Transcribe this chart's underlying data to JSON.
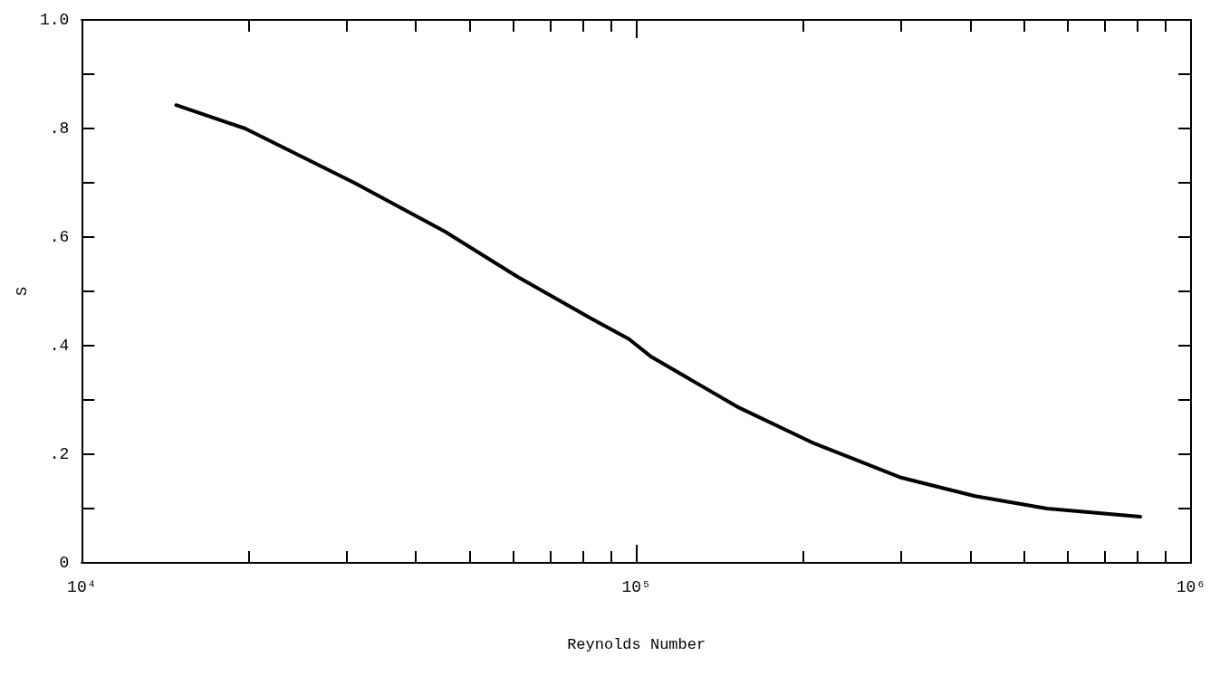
{
  "chart_data": {
    "type": "line",
    "xlabel": "Reynolds Number",
    "ylabel": "S",
    "log": "x",
    "line_style": "solid",
    "xlim": [
      10000,
      1000000
    ],
    "xticks": [
      {
        "value": 10000,
        "label": "10⁴"
      },
      {
        "value": 20000,
        "label": null
      },
      {
        "value": 30000,
        "label": null
      },
      {
        "value": 40000,
        "label": null
      },
      {
        "value": 50000,
        "label": null
      },
      {
        "value": 60000,
        "label": null
      },
      {
        "value": 70000,
        "label": null
      },
      {
        "value": 80000,
        "label": null
      },
      {
        "value": 90000,
        "label": null
      },
      {
        "value": 100000,
        "label": "10⁵"
      },
      {
        "value": 200000,
        "label": null
      },
      {
        "value": 300000,
        "label": null
      },
      {
        "value": 400000,
        "label": null
      },
      {
        "value": 500000,
        "label": null
      },
      {
        "value": 600000,
        "label": null
      },
      {
        "value": 700000,
        "label": null
      },
      {
        "value": 800000,
        "label": null
      },
      {
        "value": 900000,
        "label": null
      },
      {
        "value": 1000000,
        "label": "10⁶"
      }
    ],
    "ylim": [
      0,
      1
    ],
    "yticks": [
      0,
      {
        "value": 0.1,
        "label": null
      },
      {
        "value": 0.2,
        "label": ".2"
      },
      {
        "value": 0.3,
        "label": null
      },
      {
        "value": 0.4,
        "label": ".4"
      },
      {
        "value": 0.5,
        "label": null
      },
      {
        "value": 0.6,
        "label": ".6"
      },
      {
        "value": 0.7,
        "label": null
      },
      {
        "value": 0.8,
        "label": ".8"
      },
      {
        "value": 0.9,
        "label": null
      },
      {
        "value": 1,
        "label": "1.0"
      }
    ],
    "series": [
      {
        "color": "#000000",
        "x": [
          14800,
          19700,
          31000,
          45200,
          61000,
          82600,
          97000,
          106500,
          153000,
          207000,
          300000,
          408000,
          550000,
          810000
        ],
        "values": [
          0.843,
          0.8,
          0.7,
          0.61,
          0.527,
          0.451,
          0.412,
          0.379,
          0.286,
          0.222,
          0.157,
          0.123,
          0.1,
          0.085
        ]
      }
    ]
  }
}
